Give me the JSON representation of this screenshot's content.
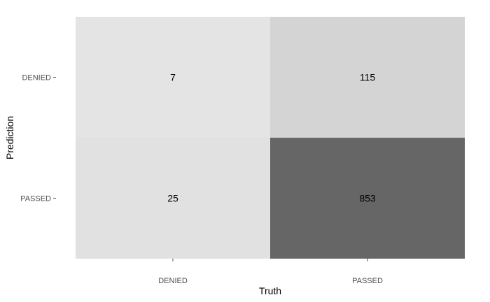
{
  "chart_data": {
    "type": "heatmap",
    "title": "",
    "xlabel": "Truth",
    "ylabel": "Prediction",
    "x_categories": [
      "DENIED",
      "PASSED"
    ],
    "y_categories": [
      "DENIED",
      "PASSED"
    ],
    "cells": [
      {
        "x": "DENIED",
        "y": "DENIED",
        "value": 7,
        "label": "7"
      },
      {
        "x": "PASSED",
        "y": "DENIED",
        "value": 115,
        "label": "115"
      },
      {
        "x": "DENIED",
        "y": "PASSED",
        "value": 25,
        "label": "25"
      },
      {
        "x": "PASSED",
        "y": "PASSED",
        "value": 853,
        "label": "853"
      }
    ],
    "color_scale": {
      "low": "#e4e4e4",
      "high": "#666666"
    },
    "legend": "none",
    "grid": false
  }
}
